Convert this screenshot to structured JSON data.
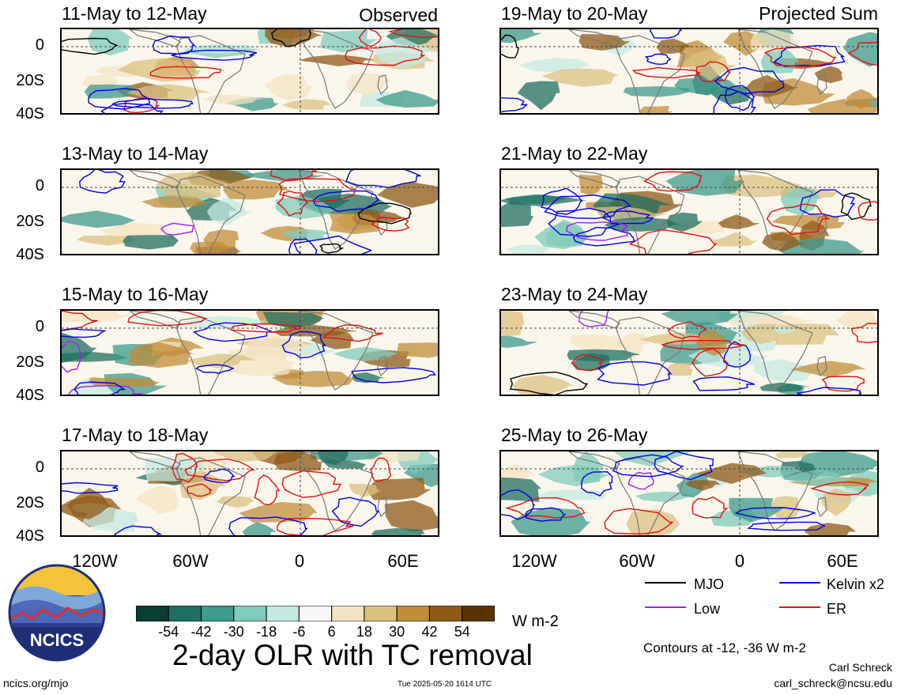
{
  "panels_left_tag": "Observed",
  "panels_right_tag": "Projected Sum",
  "panels_left": [
    {
      "title": "11-May to 12-May"
    },
    {
      "title": "13-May to 14-May"
    },
    {
      "title": "15-May to 16-May"
    },
    {
      "title": "17-May to 18-May"
    }
  ],
  "panels_right": [
    {
      "title": "19-May to 20-May"
    },
    {
      "title": "21-May to 22-May"
    },
    {
      "title": "23-May to 24-May"
    },
    {
      "title": "25-May to 26-May"
    }
  ],
  "lat_labels": [
    "0",
    "20S",
    "40S"
  ],
  "lon_labels": [
    "120W",
    "60W",
    "0",
    "60E"
  ],
  "colorbar": {
    "colors": [
      "#0b3e33",
      "#1f6f62",
      "#3e9a8c",
      "#7fcbbc",
      "#c4e9e1",
      "#f7f7f7",
      "#f3e3c0",
      "#dcc080",
      "#c08c3a",
      "#8f5a17",
      "#5a3407"
    ],
    "labels": [
      "-54",
      "-42",
      "-30",
      "-18",
      "-6",
      "6",
      "18",
      "30",
      "42",
      "54"
    ],
    "units": "W m-2"
  },
  "legend": {
    "items": [
      {
        "label": "MJO",
        "color": "#000000"
      },
      {
        "label": "Kelvin x2",
        "color": "#0000dd"
      },
      {
        "label": "Low",
        "color": "#a020f0"
      },
      {
        "label": "ER",
        "color": "#e01010"
      }
    ],
    "contours_note": "Contours at -12, -36 W m-2"
  },
  "logo_text": "NCICS",
  "main_title": "2-day OLR with TC removal",
  "author_name": "Carl Schreck",
  "author_email": "carl_schreck@ncsu.edu",
  "footer_url": "ncics.org/mjo",
  "footer_timestamp": "Tue 2025-05-20 1614 UTC"
}
